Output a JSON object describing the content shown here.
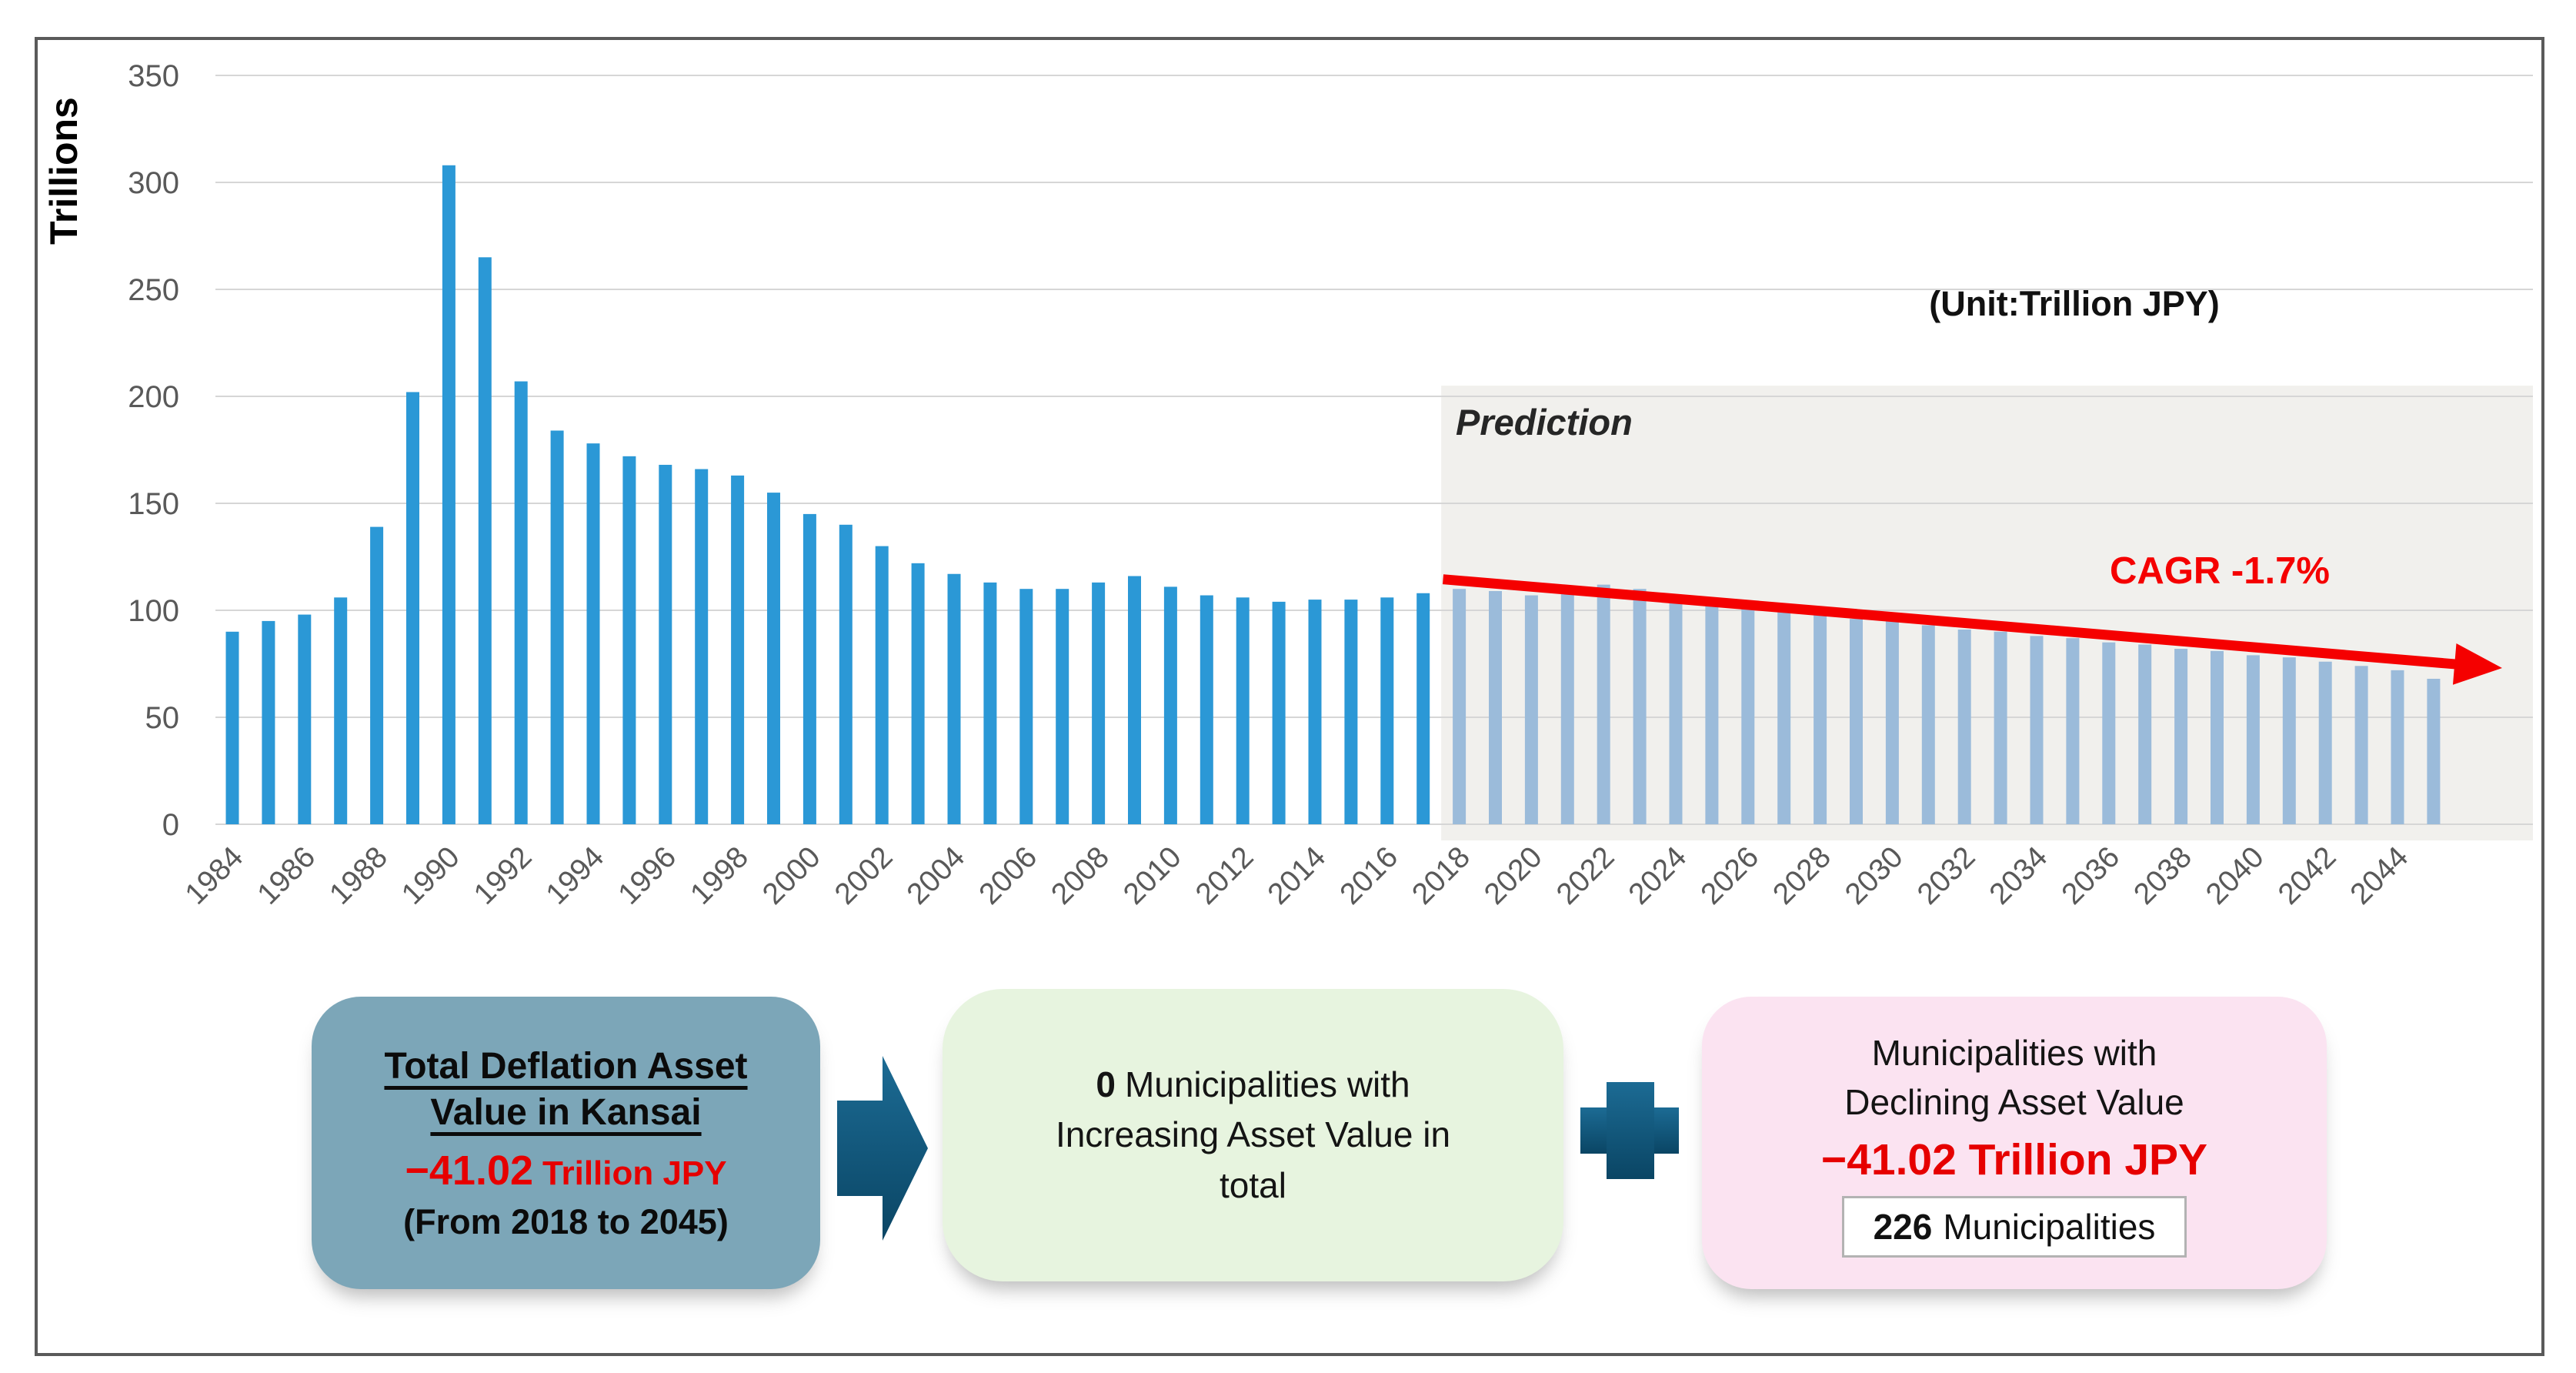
{
  "page": {
    "background": "#ffffff",
    "frame_border_color": "#5a5a5a"
  },
  "chart": {
    "y_axis_title": "Trillions",
    "unit_note": "(Unit:Trillion JPY)",
    "prediction_label": "Prediction",
    "cagr_label": "CAGR -1.7%"
  },
  "chart_data": {
    "type": "bar",
    "title": "",
    "ylabel": "Trillions",
    "unit": "Trillion JPY",
    "ylim": [
      0,
      350
    ],
    "yticks": [
      0,
      50,
      100,
      150,
      200,
      250,
      300,
      350
    ],
    "grid": "horizontal",
    "legend": "none",
    "x_tick_years": [
      1984,
      1986,
      1988,
      1990,
      1992,
      1994,
      1996,
      1998,
      2000,
      2002,
      2004,
      2006,
      2008,
      2010,
      2012,
      2014,
      2016,
      2018,
      2020,
      2022,
      2024,
      2026,
      2028,
      2030,
      2032,
      2034,
      2036,
      2038,
      2040,
      2042,
      2044
    ],
    "series": [
      {
        "name": "Actual asset value",
        "start_year": 1984,
        "end_year": 2017,
        "color": "#2B98D6",
        "values": [
          90,
          95,
          98,
          106,
          139,
          202,
          308,
          265,
          207,
          184,
          178,
          172,
          168,
          166,
          163,
          155,
          145,
          140,
          130,
          122,
          117,
          113,
          110,
          110,
          113,
          116,
          111,
          107,
          106,
          104,
          105,
          105,
          106,
          108
        ]
      },
      {
        "name": "Predicted asset value",
        "start_year": 2018,
        "end_year": 2045,
        "color": "#9BBBDA",
        "values": [
          110,
          109,
          107,
          110,
          112,
          110,
          107,
          104,
          102,
          100,
          98,
          96,
          95,
          93,
          91,
          90,
          88,
          87,
          85,
          84,
          82,
          81,
          79,
          78,
          76,
          74,
          72,
          68
        ]
      }
    ],
    "prediction_region": {
      "label": "Prediction",
      "start_year": 2017.5,
      "top_value": 205,
      "fill": "#F1F0ED"
    },
    "trend_line": {
      "label": "CAGR -1.7%",
      "color": "#F50000",
      "start": {
        "year": 2017.55,
        "value": 114.5
      },
      "end": {
        "year": 2046.9,
        "value": 73
      }
    }
  },
  "flow": {
    "arrow_color_top": "#1C6B94",
    "arrow_color_bottom": "#0A4564",
    "deflation_box": {
      "bg": "#7CA6B8",
      "title_lines": [
        "Total Deflation Asset",
        "Value in Kansai"
      ],
      "value": "−41.02",
      "value_unit": "Trillion JPY",
      "period": "(From 2018 to 2045)"
    },
    "increase_box": {
      "bg": "#E7F4DF",
      "count": "0",
      "line1": "Municipalities with",
      "line2": "Increasing Asset Value in",
      "line3": "total"
    },
    "decline_box": {
      "bg": "#FBE3F1",
      "line1": "Municipalities with",
      "line2": "Declining Asset Value",
      "value": "−41.02 Trillion JPY",
      "count": "226",
      "count_label": "Municipalities"
    }
  }
}
